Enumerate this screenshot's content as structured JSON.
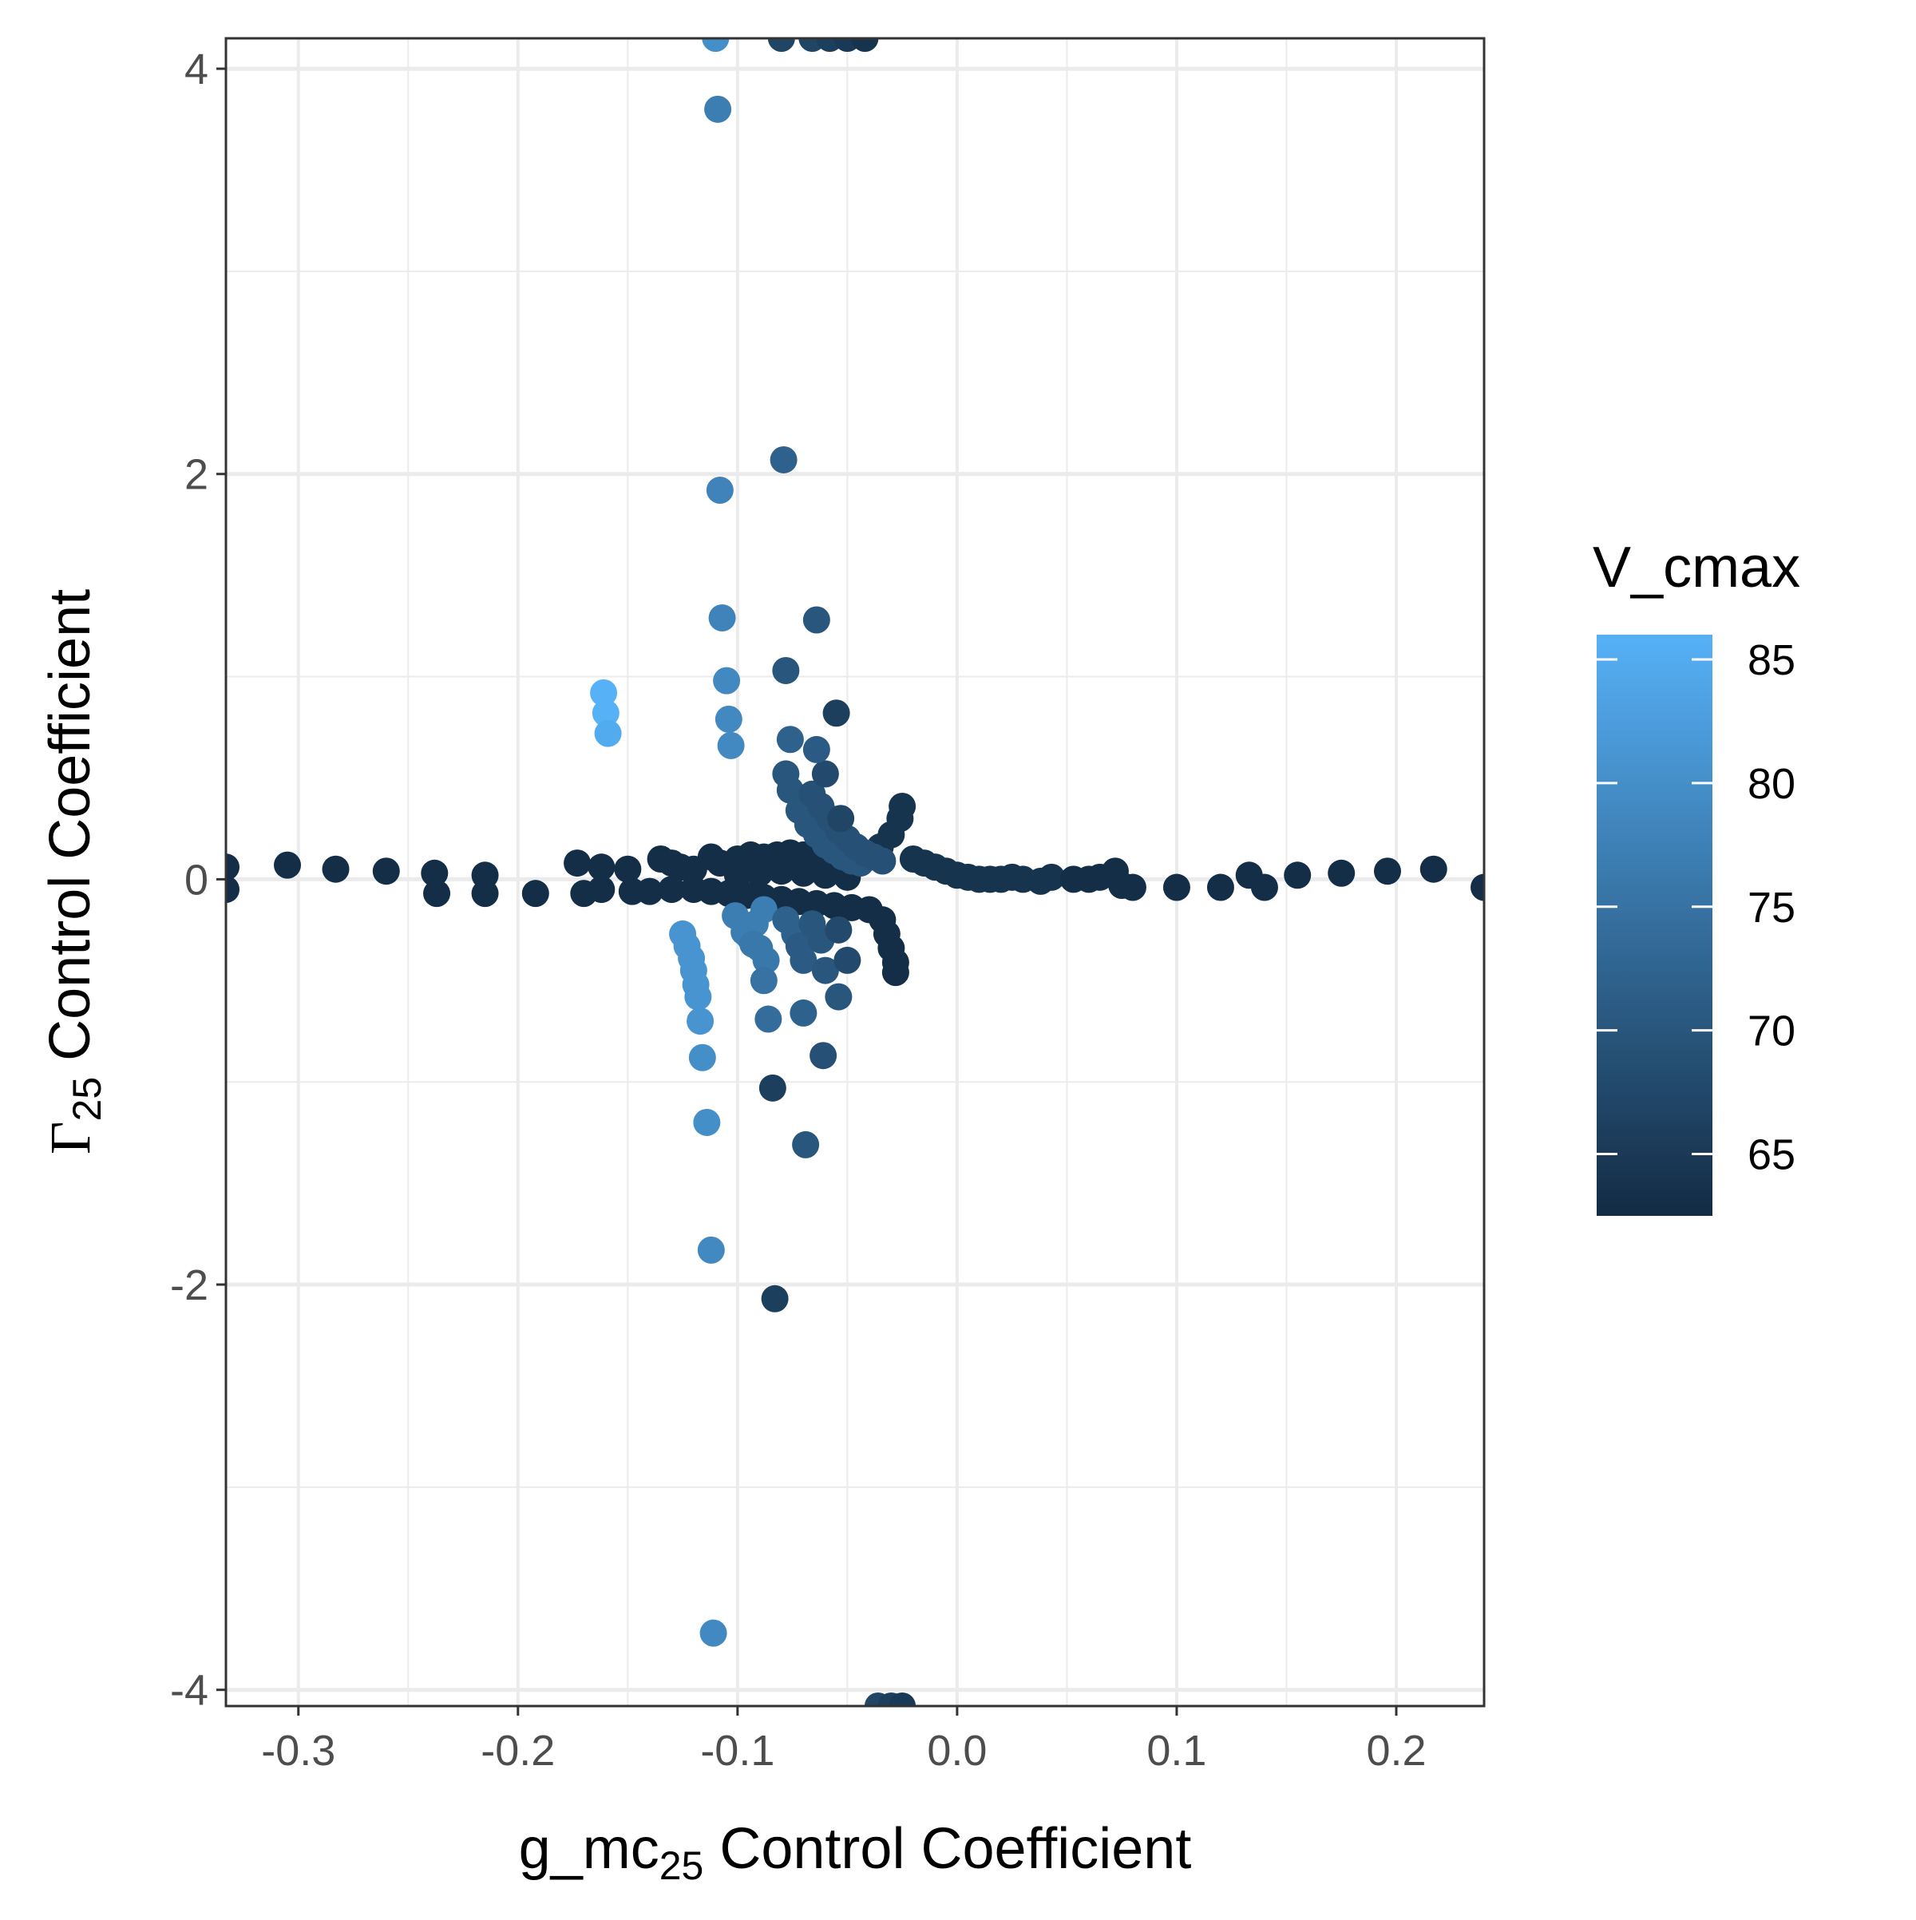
{
  "chart_data": {
    "type": "scatter",
    "xlabel": {
      "main": "g_mc",
      "sub": "25",
      "rest": " Control Coefficient"
    },
    "ylabel": {
      "main": "Γ",
      "sub": "25",
      "rest": " Control Coefficient"
    },
    "xlim": [
      -0.333,
      0.24
    ],
    "ylim": [
      -4.08,
      4.15
    ],
    "x_ticks": [
      -0.3,
      -0.2,
      -0.1,
      0.0,
      0.1,
      0.2
    ],
    "x_tick_labels": [
      "-0.3",
      "-0.2",
      "-0.1",
      "0.0",
      "0.1",
      "0.2"
    ],
    "y_ticks": [
      -4,
      -2,
      0,
      2,
      4
    ],
    "y_tick_labels": [
      "-4",
      "-2",
      "0",
      "2",
      "4"
    ],
    "grid": true,
    "legend": {
      "title": "V_cmax",
      "position": "right",
      "type": "colorbar",
      "range": [
        62.5,
        86
      ],
      "ticks": [
        65,
        70,
        75,
        80,
        85
      ],
      "tick_labels": [
        "65",
        "70",
        "75",
        "80",
        "85"
      ],
      "low_color": "#132B43",
      "high_color": "#56B1F7"
    },
    "points": [
      {
        "x": -0.333,
        "y": 0.06,
        "c": 63
      },
      {
        "x": -0.333,
        "y": -0.05,
        "c": 63
      },
      {
        "x": -0.305,
        "y": 0.07,
        "c": 63
      },
      {
        "x": -0.283,
        "y": 0.05,
        "c": 63
      },
      {
        "x": -0.26,
        "y": 0.04,
        "c": 63
      },
      {
        "x": -0.238,
        "y": 0.03,
        "c": 63
      },
      {
        "x": -0.237,
        "y": -0.07,
        "c": 63
      },
      {
        "x": -0.215,
        "y": 0.02,
        "c": 63
      },
      {
        "x": -0.215,
        "y": -0.07,
        "c": 63
      },
      {
        "x": -0.192,
        "y": -0.07,
        "c": 63
      },
      {
        "x": -0.173,
        "y": 0.08,
        "c": 63
      },
      {
        "x": -0.17,
        "y": -0.07,
        "c": 63
      },
      {
        "x": -0.162,
        "y": 0.06,
        "c": 63
      },
      {
        "x": -0.162,
        "y": -0.05,
        "c": 63
      },
      {
        "x": -0.15,
        "y": 0.05,
        "c": 63
      },
      {
        "x": -0.148,
        "y": -0.06,
        "c": 63
      },
      {
        "x": -0.14,
        "y": -0.06,
        "c": 63
      },
      {
        "x": -0.135,
        "y": 0.1,
        "c": 63
      },
      {
        "x": -0.13,
        "y": 0.08,
        "c": 63
      },
      {
        "x": -0.126,
        "y": 0.06,
        "c": 63
      },
      {
        "x": -0.13,
        "y": -0.05,
        "c": 63
      },
      {
        "x": -0.12,
        "y": 0.05,
        "c": 63
      },
      {
        "x": -0.12,
        "y": -0.05,
        "c": 63
      },
      {
        "x": -0.112,
        "y": 0.11,
        "c": 63
      },
      {
        "x": -0.108,
        "y": 0.08,
        "c": 63
      },
      {
        "x": -0.1,
        "y": 0.1,
        "c": 63
      },
      {
        "x": -0.094,
        "y": 0.12,
        "c": 63
      },
      {
        "x": -0.088,
        "y": 0.11,
        "c": 63
      },
      {
        "x": -0.082,
        "y": 0.12,
        "c": 63
      },
      {
        "x": -0.076,
        "y": 0.13,
        "c": 63
      },
      {
        "x": -0.07,
        "y": 0.12,
        "c": 63
      },
      {
        "x": -0.064,
        "y": 0.1,
        "c": 63
      },
      {
        "x": -0.112,
        "y": -0.06,
        "c": 63
      },
      {
        "x": -0.104,
        "y": -0.07,
        "c": 63
      },
      {
        "x": -0.096,
        "y": -0.08,
        "c": 63
      },
      {
        "x": -0.088,
        "y": -0.09,
        "c": 63
      },
      {
        "x": -0.08,
        "y": -0.1,
        "c": 63
      },
      {
        "x": -0.072,
        "y": -0.11,
        "c": 63
      },
      {
        "x": -0.064,
        "y": -0.12,
        "c": 63
      },
      {
        "x": -0.056,
        "y": -0.13,
        "c": 63
      },
      {
        "x": -0.048,
        "y": -0.14,
        "c": 63
      },
      {
        "x": -0.04,
        "y": -0.15,
        "c": 63
      },
      {
        "x": -0.034,
        "y": -0.2,
        "c": 63
      },
      {
        "x": -0.032,
        "y": -0.27,
        "c": 63
      },
      {
        "x": -0.03,
        "y": -0.34,
        "c": 63
      },
      {
        "x": -0.028,
        "y": -0.41,
        "c": 63
      },
      {
        "x": -0.028,
        "y": -0.46,
        "c": 63
      },
      {
        "x": -0.1,
        "y": 0.02,
        "c": 63
      },
      {
        "x": -0.09,
        "y": 0.03,
        "c": 63
      },
      {
        "x": -0.08,
        "y": 0.04,
        "c": 63
      },
      {
        "x": -0.07,
        "y": 0.03,
        "c": 63
      },
      {
        "x": -0.06,
        "y": 0.02,
        "c": 63
      },
      {
        "x": -0.05,
        "y": 0.01,
        "c": 63
      },
      {
        "x": -0.04,
        "y": 0.12,
        "c": 64
      },
      {
        "x": -0.035,
        "y": 0.16,
        "c": 64
      },
      {
        "x": -0.03,
        "y": 0.22,
        "c": 64
      },
      {
        "x": -0.026,
        "y": 0.3,
        "c": 64
      },
      {
        "x": -0.025,
        "y": 0.36,
        "c": 64
      },
      {
        "x": -0.02,
        "y": 0.1,
        "c": 64
      },
      {
        "x": -0.015,
        "y": 0.08,
        "c": 64
      },
      {
        "x": -0.01,
        "y": 0.06,
        "c": 64
      },
      {
        "x": -0.005,
        "y": 0.04,
        "c": 64
      },
      {
        "x": 0.0,
        "y": 0.02,
        "c": 64
      },
      {
        "x": 0.005,
        "y": 0.01,
        "c": 64
      },
      {
        "x": 0.01,
        "y": 0.0,
        "c": 64
      },
      {
        "x": 0.015,
        "y": 0.0,
        "c": 64
      },
      {
        "x": 0.02,
        "y": 0.0,
        "c": 64
      },
      {
        "x": 0.025,
        "y": 0.01,
        "c": 64
      },
      {
        "x": 0.03,
        "y": 0.0,
        "c": 64
      },
      {
        "x": 0.038,
        "y": -0.01,
        "c": 64
      },
      {
        "x": 0.043,
        "y": 0.01,
        "c": 64
      },
      {
        "x": 0.053,
        "y": 0.0,
        "c": 63
      },
      {
        "x": 0.06,
        "y": 0.0,
        "c": 63
      },
      {
        "x": 0.065,
        "y": 0.01,
        "c": 63
      },
      {
        "x": 0.072,
        "y": 0.04,
        "c": 63
      },
      {
        "x": 0.075,
        "y": -0.03,
        "c": 63
      },
      {
        "x": 0.08,
        "y": -0.04,
        "c": 63
      },
      {
        "x": 0.1,
        "y": -0.04,
        "c": 63
      },
      {
        "x": 0.12,
        "y": -0.04,
        "c": 63
      },
      {
        "x": 0.133,
        "y": 0.02,
        "c": 63
      },
      {
        "x": 0.14,
        "y": -0.04,
        "c": 63
      },
      {
        "x": 0.155,
        "y": 0.02,
        "c": 63
      },
      {
        "x": 0.175,
        "y": 0.03,
        "c": 63
      },
      {
        "x": 0.196,
        "y": 0.04,
        "c": 63
      },
      {
        "x": 0.217,
        "y": 0.05,
        "c": 63
      },
      {
        "x": 0.24,
        "y": -0.04,
        "c": 63
      },
      {
        "x": -0.072,
        "y": 0.34,
        "c": 70
      },
      {
        "x": -0.068,
        "y": 0.27,
        "c": 70
      },
      {
        "x": -0.064,
        "y": 0.22,
        "c": 70
      },
      {
        "x": -0.06,
        "y": 0.17,
        "c": 70
      },
      {
        "x": -0.056,
        "y": 0.14,
        "c": 70
      },
      {
        "x": -0.052,
        "y": 0.11,
        "c": 70
      },
      {
        "x": -0.048,
        "y": 0.09,
        "c": 70
      },
      {
        "x": -0.044,
        "y": 0.08,
        "c": 70
      },
      {
        "x": -0.078,
        "y": 0.52,
        "c": 70
      },
      {
        "x": -0.076,
        "y": 0.44,
        "c": 70
      },
      {
        "x": -0.066,
        "y": 0.42,
        "c": 69
      },
      {
        "x": -0.062,
        "y": 0.36,
        "c": 69
      },
      {
        "x": -0.058,
        "y": 0.3,
        "c": 69
      },
      {
        "x": -0.054,
        "y": 0.24,
        "c": 69
      },
      {
        "x": -0.05,
        "y": 0.2,
        "c": 69
      },
      {
        "x": -0.046,
        "y": 0.16,
        "c": 69
      },
      {
        "x": -0.042,
        "y": 0.13,
        "c": 69
      },
      {
        "x": -0.038,
        "y": 0.11,
        "c": 69
      },
      {
        "x": -0.034,
        "y": 0.09,
        "c": 69
      },
      {
        "x": -0.053,
        "y": 0.3,
        "c": 67
      },
      {
        "x": -0.06,
        "y": 0.52,
        "c": 68
      },
      {
        "x": -0.064,
        "y": 1.28,
        "c": 70
      },
      {
        "x": -0.078,
        "y": 1.03,
        "c": 70
      },
      {
        "x": -0.055,
        "y": 0.82,
        "c": 66
      },
      {
        "x": -0.076,
        "y": 0.69,
        "c": 72
      },
      {
        "x": -0.064,
        "y": 0.64,
        "c": 71
      },
      {
        "x": -0.079,
        "y": 2.07,
        "c": 72
      },
      {
        "x": -0.088,
        "y": -0.15,
        "c": 77
      },
      {
        "x": -0.092,
        "y": -0.22,
        "c": 77
      },
      {
        "x": -0.095,
        "y": -0.28,
        "c": 77
      },
      {
        "x": -0.09,
        "y": -0.34,
        "c": 76
      },
      {
        "x": -0.087,
        "y": -0.4,
        "c": 76
      },
      {
        "x": -0.088,
        "y": -0.5,
        "c": 75
      },
      {
        "x": -0.101,
        "y": -0.18,
        "c": 77
      },
      {
        "x": -0.097,
        "y": -0.26,
        "c": 77
      },
      {
        "x": -0.093,
        "y": -0.32,
        "c": 76
      },
      {
        "x": -0.078,
        "y": -0.2,
        "c": 72
      },
      {
        "x": -0.074,
        "y": -0.27,
        "c": 72
      },
      {
        "x": -0.072,
        "y": -0.33,
        "c": 71
      },
      {
        "x": -0.07,
        "y": -0.4,
        "c": 71
      },
      {
        "x": -0.066,
        "y": -0.22,
        "c": 70
      },
      {
        "x": -0.062,
        "y": -0.3,
        "c": 70
      },
      {
        "x": -0.06,
        "y": -0.45,
        "c": 70
      },
      {
        "x": -0.054,
        "y": -0.25,
        "c": 68
      },
      {
        "x": -0.05,
        "y": -0.4,
        "c": 68
      },
      {
        "x": -0.054,
        "y": -0.58,
        "c": 70
      },
      {
        "x": -0.07,
        "y": -0.66,
        "c": 72
      },
      {
        "x": -0.086,
        "y": -0.69,
        "c": 74
      },
      {
        "x": -0.061,
        "y": -0.87,
        "c": 69
      },
      {
        "x": -0.084,
        "y": -1.03,
        "c": 66
      },
      {
        "x": -0.069,
        "y": -1.31,
        "c": 70
      },
      {
        "x": -0.083,
        "y": -2.07,
        "c": 66
      },
      {
        "x": -0.125,
        "y": -0.27,
        "c": 81
      },
      {
        "x": -0.123,
        "y": -0.33,
        "c": 81
      },
      {
        "x": -0.121,
        "y": -0.39,
        "c": 81
      },
      {
        "x": -0.12,
        "y": -0.45,
        "c": 81
      },
      {
        "x": -0.119,
        "y": -0.52,
        "c": 81
      },
      {
        "x": -0.118,
        "y": -0.58,
        "c": 81
      },
      {
        "x": -0.117,
        "y": -0.7,
        "c": 81
      },
      {
        "x": -0.116,
        "y": -0.88,
        "c": 80
      },
      {
        "x": -0.114,
        "y": -1.2,
        "c": 80
      },
      {
        "x": -0.112,
        "y": -1.83,
        "c": 79
      },
      {
        "x": -0.111,
        "y": -3.72,
        "c": 79
      },
      {
        "x": -0.108,
        "y": 1.92,
        "c": 78
      },
      {
        "x": -0.107,
        "y": 1.29,
        "c": 78
      },
      {
        "x": -0.105,
        "y": 0.98,
        "c": 79
      },
      {
        "x": -0.104,
        "y": 0.79,
        "c": 79
      },
      {
        "x": -0.103,
        "y": 0.66,
        "c": 79
      },
      {
        "x": -0.109,
        "y": 3.8,
        "c": 77
      },
      {
        "x": -0.11,
        "y": 4.15,
        "c": 80
      },
      {
        "x": -0.08,
        "y": 4.15,
        "c": 67
      },
      {
        "x": -0.066,
        "y": 4.15,
        "c": 67
      },
      {
        "x": -0.058,
        "y": 4.15,
        "c": 66
      },
      {
        "x": -0.05,
        "y": 4.15,
        "c": 65
      },
      {
        "x": -0.042,
        "y": 4.15,
        "c": 64
      },
      {
        "x": -0.036,
        "y": -4.08,
        "c": 67
      },
      {
        "x": -0.03,
        "y": -4.08,
        "c": 66
      },
      {
        "x": -0.025,
        "y": -4.08,
        "c": 65
      },
      {
        "x": -0.161,
        "y": 0.92,
        "c": 86
      },
      {
        "x": -0.16,
        "y": 0.82,
        "c": 86
      },
      {
        "x": -0.159,
        "y": 0.72,
        "c": 85
      }
    ]
  }
}
